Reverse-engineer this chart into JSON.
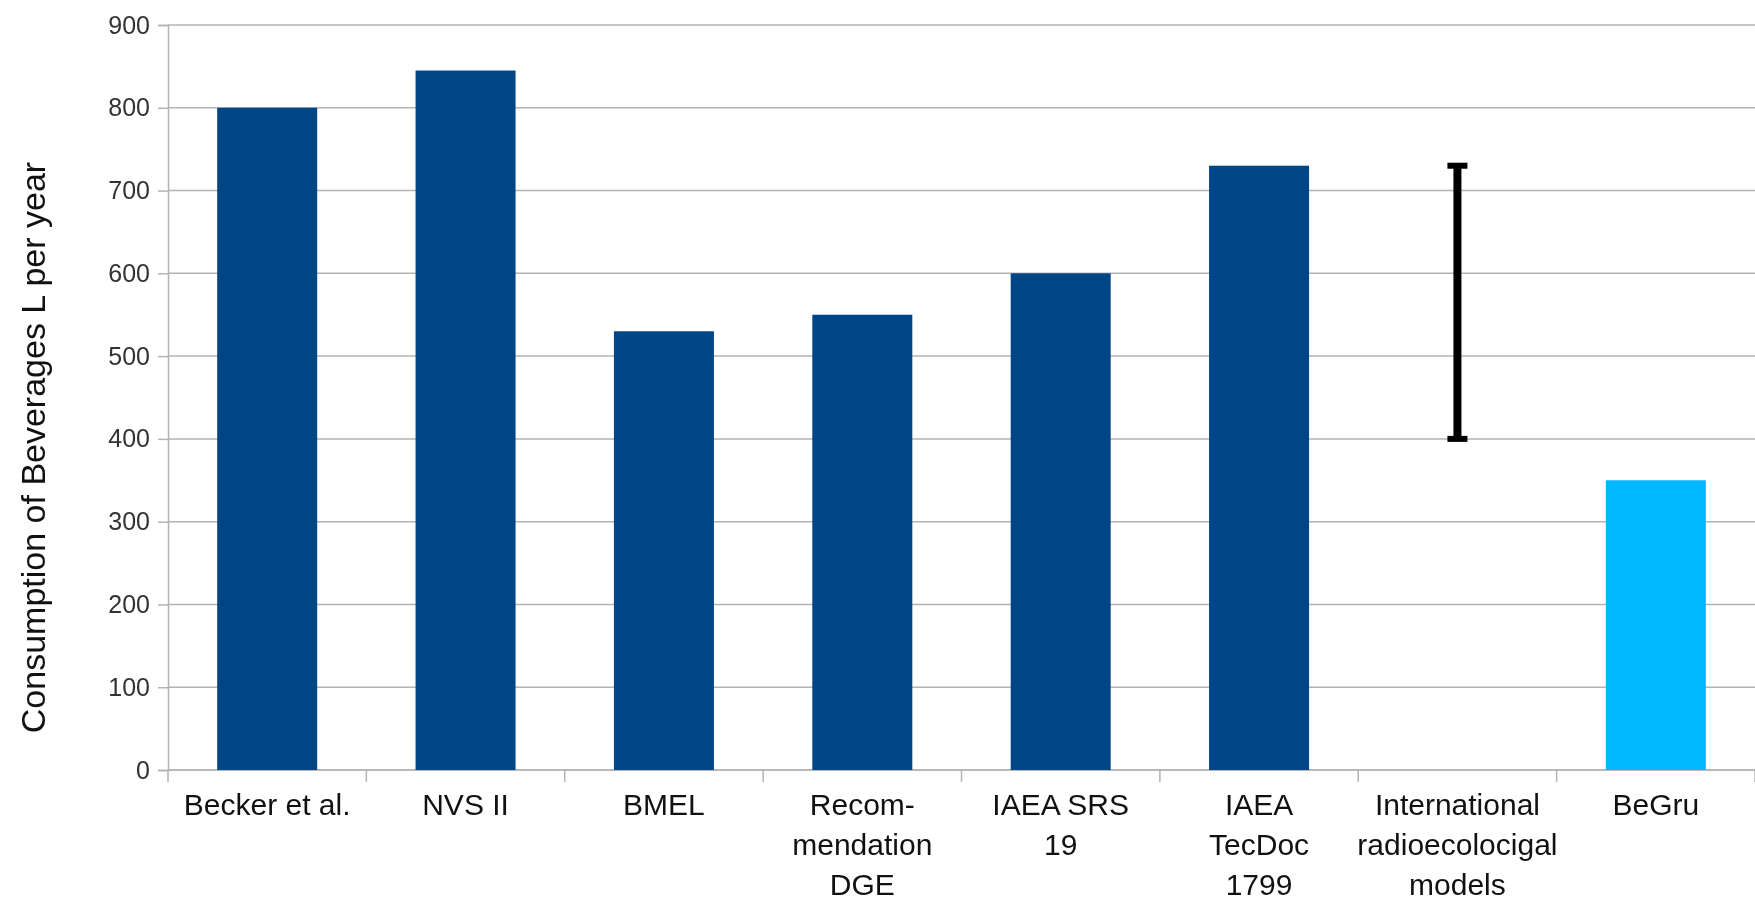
{
  "chart_data": {
    "type": "bar",
    "ylabel": "Consumption of Beverages L per year",
    "categories": [
      "Becker et al.",
      "NVS II",
      "BMEL",
      "Recom-\nmendation\nDGE",
      "IAEA SRS\n19",
      "IAEA\nTecDoc\n1799",
      "International\nradioecolocigal\nmodels",
      "BeGru"
    ],
    "values": [
      800,
      845,
      530,
      550,
      600,
      730,
      330,
      350
    ],
    "base": [
      0,
      0,
      0,
      0,
      0,
      0,
      400,
      0
    ],
    "colors": [
      "#004586",
      "#004586",
      "#004586",
      "#004586",
      "#004586",
      "#004586",
      "#000000",
      "#00b8ff"
    ],
    "ylim": [
      0,
      900
    ],
    "yticks": [
      0,
      100,
      200,
      300,
      400,
      500,
      600,
      700,
      800,
      900
    ],
    "grid": "y"
  }
}
